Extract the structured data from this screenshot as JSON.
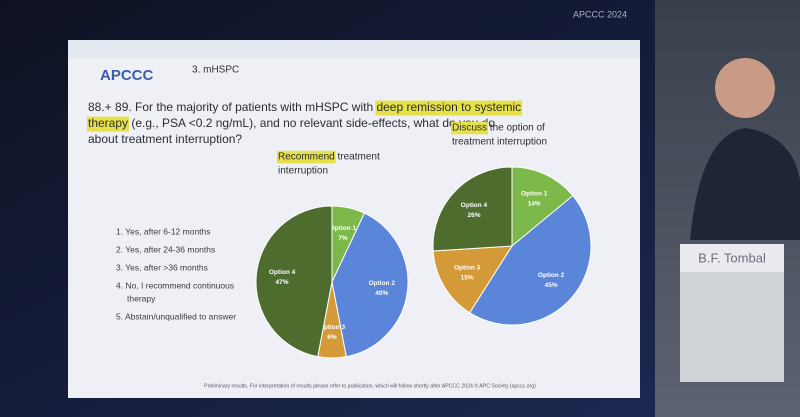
{
  "event": "APCCC 2024",
  "logo": "APCCC",
  "section": "3. mHSPC",
  "question": [
    [
      {
        "text": "88.+ 89. For the majority of patients with mHSPC with ",
        "highlight": false
      },
      {
        "text": "deep remission to systemic",
        "highlight": true
      }
    ],
    [
      {
        "text": "therapy",
        "highlight": true
      },
      {
        "text": " (e.g., PSA <0.2 ng/mL), and no relevant side-effects, what do you do",
        "highlight": false
      }
    ],
    [
      {
        "text": "about treatment interruption?",
        "highlight": false
      }
    ]
  ],
  "options": [
    [
      "1. Yes, after 6-12 months"
    ],
    [
      "2. Yes, after 24-36 months"
    ],
    [
      "3. Yes, after >36 months"
    ],
    [
      "4. No, I recommend continuous",
      "therapy"
    ],
    [
      "5. Abstain/unqualified to answer"
    ]
  ],
  "footer": "Preliminary results. For interpretation of results please refer to publication, which will follow shortly after APCCC 2024 © APC Society (apccc.org)",
  "speaker": "B.F. Tombal",
  "chart_data": [
    {
      "type": "pie",
      "title": [
        [
          {
            "text": "Recommend",
            "highlight": true
          },
          {
            "text": " treatment",
            "highlight": false
          }
        ],
        [
          {
            "text": "interruption",
            "highlight": false
          }
        ]
      ],
      "categories": [
        "Option 1",
        "Option 2",
        "Option 3",
        "Option 4"
      ],
      "values": [
        7,
        40,
        6,
        47
      ],
      "value_labels": [
        "7%",
        "40%",
        "6%",
        "47%"
      ],
      "colors": [
        "#7cb84a",
        "#5a85d8",
        "#d49a38",
        "#4e6c2e"
      ]
    },
    {
      "type": "pie",
      "title": [
        [
          {
            "text": "Discuss",
            "highlight": true
          },
          {
            "text": " the option of",
            "highlight": false
          }
        ],
        [
          {
            "text": "treatment interruption",
            "highlight": false
          }
        ]
      ],
      "categories": [
        "Option 1",
        "Option 2",
        "Option 3",
        "Option 4"
      ],
      "values": [
        14,
        45,
        15,
        26
      ],
      "value_labels": [
        "14%",
        "45%",
        "15%",
        "26%"
      ],
      "colors": [
        "#7cb84a",
        "#5a85d8",
        "#d49a38",
        "#4e6c2e"
      ]
    }
  ]
}
